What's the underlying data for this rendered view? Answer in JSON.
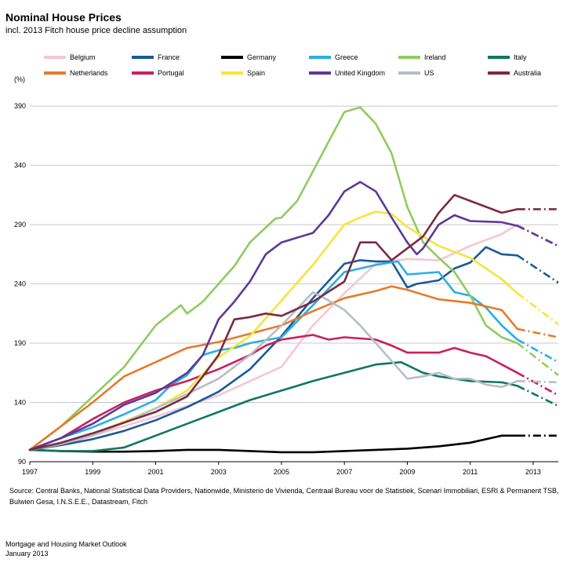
{
  "chart_data": {
    "type": "line",
    "title": "Nominal House Prices",
    "subtitle": "incl. 2013 Fitch house price decline assumption",
    "ylabel": "(%)",
    "xlabel": "",
    "ylim": [
      90,
      400
    ],
    "xlim": [
      1997,
      2013.8
    ],
    "y_ticks": [
      90,
      140,
      190,
      240,
      290,
      340,
      390
    ],
    "x_ticks": [
      1997,
      1999,
      2001,
      2003,
      2005,
      2007,
      2009,
      2011,
      2013
    ],
    "grid": "horizontal",
    "legend_position": "top",
    "forecast_from": 2012.5,
    "series": [
      {
        "name": "Belgium",
        "color": "#f4c7d3",
        "points": [
          [
            1997,
            100
          ],
          [
            1998,
            104
          ],
          [
            1999,
            112
          ],
          [
            2000,
            120
          ],
          [
            2001,
            128
          ],
          [
            2002,
            137
          ],
          [
            2003,
            146
          ],
          [
            2004,
            158
          ],
          [
            2005,
            170
          ],
          [
            2006,
            205
          ],
          [
            2007,
            232
          ],
          [
            2008,
            257
          ],
          [
            2009,
            261
          ],
          [
            2010,
            260
          ],
          [
            2011,
            272
          ],
          [
            2012,
            282
          ],
          [
            2012.5,
            290
          ],
          [
            2013.8,
            271
          ]
        ]
      },
      {
        "name": "France",
        "color": "#1a5a99",
        "points": [
          [
            1997,
            100
          ],
          [
            1998,
            104
          ],
          [
            1999,
            109
          ],
          [
            2000,
            116
          ],
          [
            2001,
            125
          ],
          [
            2002,
            136
          ],
          [
            2003,
            149
          ],
          [
            2004,
            168
          ],
          [
            2005,
            196
          ],
          [
            2006,
            228
          ],
          [
            2007,
            257
          ],
          [
            2007.5,
            260
          ],
          [
            2008,
            259
          ],
          [
            2008.5,
            259
          ],
          [
            2009,
            237
          ],
          [
            2009.3,
            240
          ],
          [
            2010,
            243
          ],
          [
            2010.5,
            253
          ],
          [
            2011,
            258
          ],
          [
            2011.5,
            271
          ],
          [
            2012,
            265
          ],
          [
            2012.5,
            264
          ],
          [
            2013.8,
            241
          ]
        ]
      },
      {
        "name": "Germany",
        "color": "#000000",
        "points": [
          [
            1997,
            100
          ],
          [
            1998,
            99
          ],
          [
            1999,
            98.5
          ],
          [
            2000,
            98.5
          ],
          [
            2001,
            99
          ],
          [
            2002,
            100
          ],
          [
            2003,
            100
          ],
          [
            2004,
            99
          ],
          [
            2005,
            98
          ],
          [
            2006,
            98
          ],
          [
            2007,
            99
          ],
          [
            2008,
            100
          ],
          [
            2009,
            101
          ],
          [
            2010,
            103
          ],
          [
            2011,
            106
          ],
          [
            2012,
            112
          ],
          [
            2012.5,
            112
          ],
          [
            2013.8,
            112
          ]
        ]
      },
      {
        "name": "Greece",
        "color": "#29aee4",
        "points": [
          [
            1997,
            100
          ],
          [
            1998,
            110
          ],
          [
            1999,
            119
          ],
          [
            2000,
            130
          ],
          [
            2001,
            142
          ],
          [
            2001.5,
            155
          ],
          [
            2002,
            163
          ],
          [
            2002.5,
            180
          ],
          [
            2003,
            184
          ],
          [
            2003.5,
            186
          ],
          [
            2004,
            190
          ],
          [
            2005,
            195
          ],
          [
            2006,
            222
          ],
          [
            2007,
            250
          ],
          [
            2008,
            256
          ],
          [
            2008.7,
            259
          ],
          [
            2009,
            248
          ],
          [
            2010,
            250
          ],
          [
            2010.5,
            233
          ],
          [
            2011,
            230
          ],
          [
            2011.5,
            220
          ],
          [
            2012,
            205
          ],
          [
            2012.5,
            193
          ],
          [
            2013.8,
            174
          ]
        ]
      },
      {
        "name": "Ireland",
        "color": "#8fcc5f",
        "points": [
          [
            1997,
            100
          ],
          [
            1998,
            120
          ],
          [
            1999,
            145
          ],
          [
            2000,
            170
          ],
          [
            2001,
            205
          ],
          [
            2001.8,
            222
          ],
          [
            2002,
            215
          ],
          [
            2002.5,
            225
          ],
          [
            2003,
            240
          ],
          [
            2003.5,
            255
          ],
          [
            2004,
            275
          ],
          [
            2004.8,
            295
          ],
          [
            2005,
            296
          ],
          [
            2005.5,
            310
          ],
          [
            2006,
            335
          ],
          [
            2006.5,
            360
          ],
          [
            2007,
            385
          ],
          [
            2007.5,
            389
          ],
          [
            2008,
            375
          ],
          [
            2008.5,
            350
          ],
          [
            2009,
            305
          ],
          [
            2009.5,
            275
          ],
          [
            2010,
            262
          ],
          [
            2010.5,
            250
          ],
          [
            2011,
            230
          ],
          [
            2011.5,
            205
          ],
          [
            2012,
            195
          ],
          [
            2012.5,
            190
          ],
          [
            2013.8,
            163
          ]
        ]
      },
      {
        "name": "Italy",
        "color": "#11775f",
        "points": [
          [
            1997,
            100
          ],
          [
            1998,
            99
          ],
          [
            1999,
            99
          ],
          [
            2000,
            102
          ],
          [
            2001,
            112
          ],
          [
            2002,
            122
          ],
          [
            2003,
            132
          ],
          [
            2004,
            142
          ],
          [
            2005,
            150
          ],
          [
            2006,
            158
          ],
          [
            2007,
            165
          ],
          [
            2008,
            172
          ],
          [
            2008.8,
            174
          ],
          [
            2009.5,
            165
          ],
          [
            2010,
            162
          ],
          [
            2011,
            158
          ],
          [
            2012,
            157
          ],
          [
            2012.5,
            154
          ],
          [
            2013.8,
            137
          ]
        ]
      },
      {
        "name": "Netherlands",
        "color": "#e67b2b",
        "points": [
          [
            1997,
            100
          ],
          [
            1998,
            120
          ],
          [
            1999,
            140
          ],
          [
            2000,
            162
          ],
          [
            2001,
            174
          ],
          [
            2002,
            186
          ],
          [
            2003,
            191
          ],
          [
            2004,
            198
          ],
          [
            2005,
            205
          ],
          [
            2006,
            217
          ],
          [
            2007,
            228
          ],
          [
            2008,
            234
          ],
          [
            2008.5,
            238
          ],
          [
            2009,
            235
          ],
          [
            2010,
            227
          ],
          [
            2011,
            224
          ],
          [
            2012,
            218
          ],
          [
            2012.5,
            202
          ],
          [
            2013.8,
            195
          ]
        ]
      },
      {
        "name": "Portugal",
        "color": "#cc1f5a",
        "points": [
          [
            1997,
            100
          ],
          [
            1998,
            110
          ],
          [
            1999,
            126
          ],
          [
            2000,
            140
          ],
          [
            2001,
            150
          ],
          [
            2002,
            158
          ],
          [
            2003,
            168
          ],
          [
            2004,
            180
          ],
          [
            2004.5,
            188
          ],
          [
            2005,
            193
          ],
          [
            2006,
            197
          ],
          [
            2006.5,
            193
          ],
          [
            2007,
            195
          ],
          [
            2008,
            193
          ],
          [
            2008.5,
            188
          ],
          [
            2009,
            182
          ],
          [
            2010,
            182
          ],
          [
            2010.5,
            186
          ],
          [
            2011,
            182
          ],
          [
            2011.5,
            179
          ],
          [
            2012,
            172
          ],
          [
            2012.5,
            165
          ],
          [
            2013.8,
            146
          ]
        ]
      },
      {
        "name": "Spain",
        "color": "#f7e43b",
        "points": [
          [
            1997,
            100
          ],
          [
            1998,
            105
          ],
          [
            1999,
            113
          ],
          [
            2000,
            124
          ],
          [
            2001,
            135
          ],
          [
            2002,
            150
          ],
          [
            2003,
            178
          ],
          [
            2004,
            196
          ],
          [
            2005,
            226
          ],
          [
            2006,
            256
          ],
          [
            2007,
            290
          ],
          [
            2007.5,
            296
          ],
          [
            2008,
            301
          ],
          [
            2008.5,
            299
          ],
          [
            2009,
            288
          ],
          [
            2010,
            272
          ],
          [
            2011,
            262
          ],
          [
            2012,
            244
          ],
          [
            2012.5,
            232
          ],
          [
            2013.8,
            206
          ]
        ]
      },
      {
        "name": "United Kingdom",
        "color": "#5b3a96",
        "points": [
          [
            1997,
            100
          ],
          [
            1998,
            110
          ],
          [
            1999,
            122
          ],
          [
            2000,
            138
          ],
          [
            2001,
            148
          ],
          [
            2002,
            165
          ],
          [
            2002.5,
            180
          ],
          [
            2003,
            210
          ],
          [
            2003.5,
            225
          ],
          [
            2004,
            242
          ],
          [
            2004.5,
            265
          ],
          [
            2005,
            275
          ],
          [
            2006,
            283
          ],
          [
            2006.5,
            298
          ],
          [
            2007,
            318
          ],
          [
            2007.5,
            326
          ],
          [
            2008,
            318
          ],
          [
            2008.5,
            296
          ],
          [
            2009,
            275
          ],
          [
            2009.3,
            265
          ],
          [
            2009.5,
            270
          ],
          [
            2010,
            290
          ],
          [
            2010.5,
            298
          ],
          [
            2011,
            293
          ],
          [
            2012,
            292
          ],
          [
            2012.5,
            289
          ],
          [
            2013.8,
            272
          ]
        ]
      },
      {
        "name": "US",
        "color": "#b8bec3",
        "points": [
          [
            1997,
            100
          ],
          [
            1998,
            105
          ],
          [
            1999,
            112
          ],
          [
            2000,
            123
          ],
          [
            2001,
            135
          ],
          [
            2002,
            147
          ],
          [
            2003,
            160
          ],
          [
            2004,
            180
          ],
          [
            2005,
            205
          ],
          [
            2006,
            233
          ],
          [
            2006.5,
            226
          ],
          [
            2007,
            218
          ],
          [
            2007.5,
            205
          ],
          [
            2008,
            190
          ],
          [
            2008.5,
            175
          ],
          [
            2009,
            160
          ],
          [
            2009.5,
            162
          ],
          [
            2010,
            165
          ],
          [
            2010.5,
            160
          ],
          [
            2011,
            160
          ],
          [
            2011.5,
            155
          ],
          [
            2012,
            153
          ],
          [
            2012.5,
            158
          ],
          [
            2013.8,
            157
          ]
        ]
      },
      {
        "name": "Australia",
        "color": "#7a2a45",
        "points": [
          [
            1997,
            100
          ],
          [
            1998,
            106
          ],
          [
            1999,
            114
          ],
          [
            2000,
            123
          ],
          [
            2001,
            132
          ],
          [
            2002,
            145
          ],
          [
            2002.5,
            162
          ],
          [
            2003,
            180
          ],
          [
            2003.5,
            210
          ],
          [
            2004,
            212
          ],
          [
            2004.5,
            215
          ],
          [
            2005,
            213
          ],
          [
            2006,
            225
          ],
          [
            2007,
            242
          ],
          [
            2007.5,
            275
          ],
          [
            2008,
            275
          ],
          [
            2008.5,
            260
          ],
          [
            2009,
            270
          ],
          [
            2009.5,
            280
          ],
          [
            2010,
            300
          ],
          [
            2010.5,
            315
          ],
          [
            2011,
            310
          ],
          [
            2011.5,
            305
          ],
          [
            2012,
            300
          ],
          [
            2012.5,
            303
          ],
          [
            2013.8,
            303
          ]
        ]
      }
    ]
  },
  "source": "Source: Central Banks,  National Statistical Data Providers, Nationwide, Ministerio de Vivienda, Centraal Bureau voor de Statistiek, Scenari Immobiliari, ESRI & Permanent TSB, Bulwien Gesa, I.N.S.E.E., Datastream, Fitch",
  "footer": {
    "line1": "Mortgage and Housing Market Outlook",
    "line2": "January 2013"
  }
}
